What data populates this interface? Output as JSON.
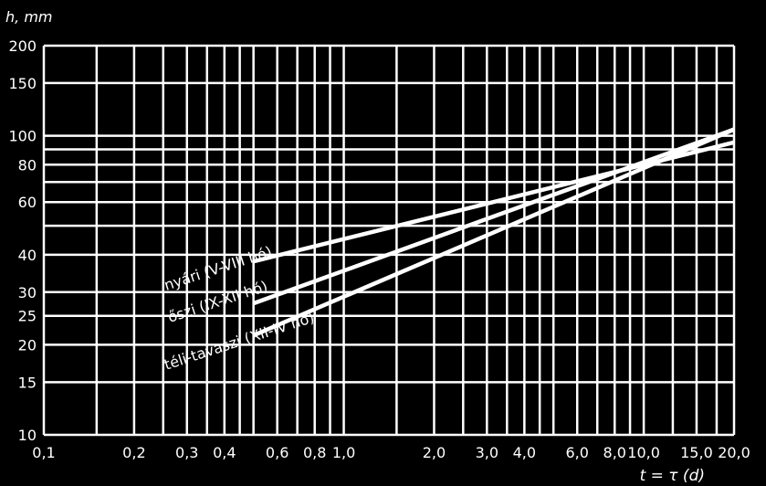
{
  "chart_data": {
    "type": "line",
    "title": "",
    "xlabel": "t = τ (d)",
    "ylabel": "h, mm",
    "x_scale": "log",
    "y_scale": "log",
    "xlim": [
      0.1,
      20
    ],
    "ylim": [
      10,
      200
    ],
    "grid": true,
    "x_ticks": [
      {
        "value": 0.1,
        "label": "0,1"
      },
      {
        "value": 0.2,
        "label": "0,2"
      },
      {
        "value": 0.3,
        "label": "0,3"
      },
      {
        "value": 0.4,
        "label": "0,4"
      },
      {
        "value": 0.6,
        "label": "0,6"
      },
      {
        "value": 0.8,
        "label": "0,8"
      },
      {
        "value": 1.0,
        "label": "1,0"
      },
      {
        "value": 2.0,
        "label": "2,0"
      },
      {
        "value": 3.0,
        "label": "3,0"
      },
      {
        "value": 4.0,
        "label": "4,0"
      },
      {
        "value": 6.0,
        "label": "6,0"
      },
      {
        "value": 8.0,
        "label": "8,0"
      },
      {
        "value": 10.0,
        "label": "10,0"
      },
      {
        "value": 15.0,
        "label": "15,0"
      },
      {
        "value": 20.0,
        "label": "20,0"
      }
    ],
    "x_grid": [
      0.1,
      0.15,
      0.2,
      0.25,
      0.3,
      0.35,
      0.4,
      0.45,
      0.5,
      0.6,
      0.7,
      0.8,
      0.9,
      1.0,
      1.5,
      2.0,
      2.5,
      3.0,
      3.5,
      4.0,
      4.5,
      5.0,
      6.0,
      7.0,
      8.0,
      9.0,
      10.0,
      12.5,
      15.0,
      17.5,
      20.0
    ],
    "y_ticks": [
      {
        "value": 10,
        "label": "10"
      },
      {
        "value": 15,
        "label": "15"
      },
      {
        "value": 20,
        "label": "20"
      },
      {
        "value": 25,
        "label": "25"
      },
      {
        "value": 30,
        "label": "30"
      },
      {
        "value": 40,
        "label": "40"
      },
      {
        "value": 60,
        "label": "60"
      },
      {
        "value": 80,
        "label": "80"
      },
      {
        "value": 100,
        "label": "100"
      },
      {
        "value": 150,
        "label": "150"
      },
      {
        "value": 200,
        "label": "200"
      }
    ],
    "y_grid": [
      10,
      15,
      20,
      25,
      30,
      40,
      50,
      60,
      70,
      80,
      90,
      100,
      150,
      200
    ],
    "series": [
      {
        "name": "nyári (V-VIII hó)",
        "x": [
          0.5,
          20.0
        ],
        "y": [
          38,
          95
        ]
      },
      {
        "name": "őszi (IX-XII hó)",
        "x": [
          0.5,
          20.0
        ],
        "y": [
          27.5,
          105
        ]
      },
      {
        "name": "téli-tavaszi (XII-IV hó)",
        "x": [
          0.5,
          20.0
        ],
        "y": [
          21.5,
          105
        ]
      }
    ]
  }
}
